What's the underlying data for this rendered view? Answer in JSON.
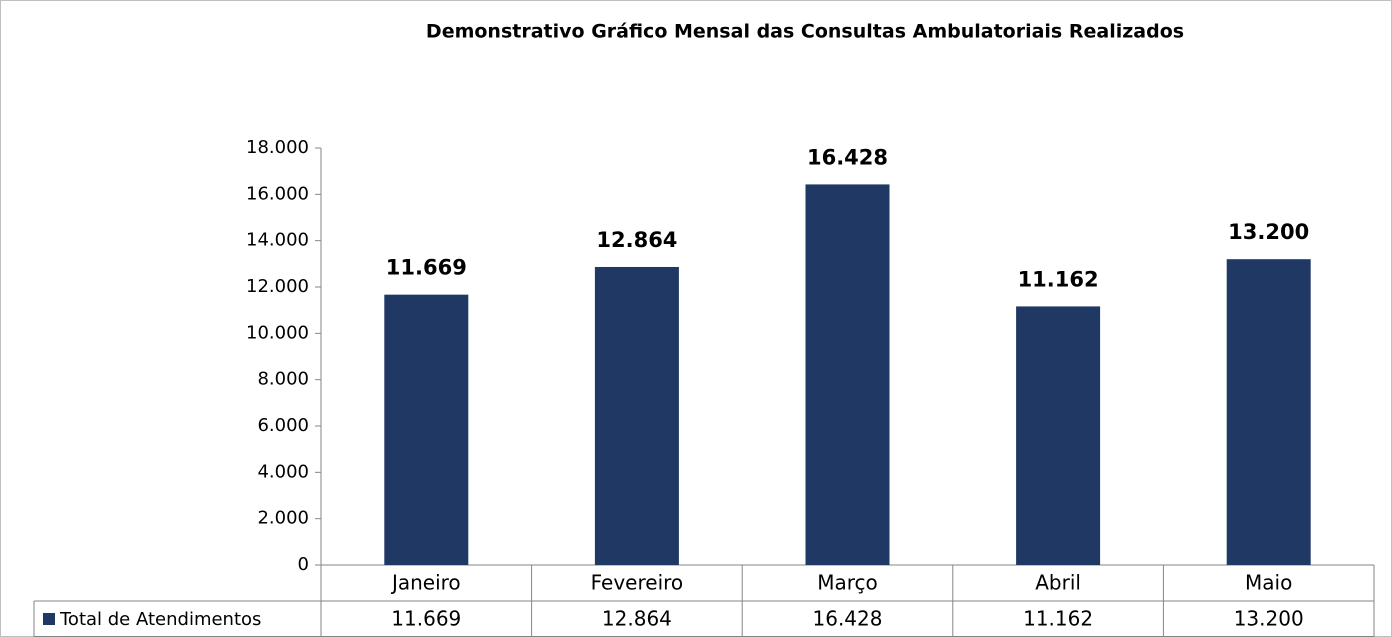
{
  "chart_data": {
    "type": "bar",
    "title": "Demonstrativo Gráfico Mensal das Consultas Ambulatoriais Realizados",
    "categories": [
      "Janeiro",
      "Fevereiro",
      "Março",
      "Abril",
      "Maio"
    ],
    "series": [
      {
        "name": "Total de Atendimentos",
        "color": "#1f3864",
        "values": [
          11669,
          12864,
          16428,
          11162,
          13200
        ],
        "value_labels": [
          "11.669",
          "12.864",
          "16.428",
          "11.162",
          "13.200"
        ]
      }
    ],
    "ylim": [
      0,
      18000
    ],
    "yticks": [
      0,
      {
        "value": 2000,
        "label": "2.000"
      },
      {
        "value": 4000,
        "label": "4.000"
      },
      {
        "value": 6000,
        "label": "6.000"
      },
      {
        "value": 8000,
        "label": "8.000"
      },
      {
        "value": 10000,
        "label": "10.000"
      },
      {
        "value": 12000,
        "label": "12.000"
      },
      {
        "value": 14000,
        "label": "14.000"
      },
      {
        "value": 16000,
        "label": "16.000"
      },
      {
        "value": 18000,
        "label": "18.000"
      }
    ],
    "grid": false
  }
}
